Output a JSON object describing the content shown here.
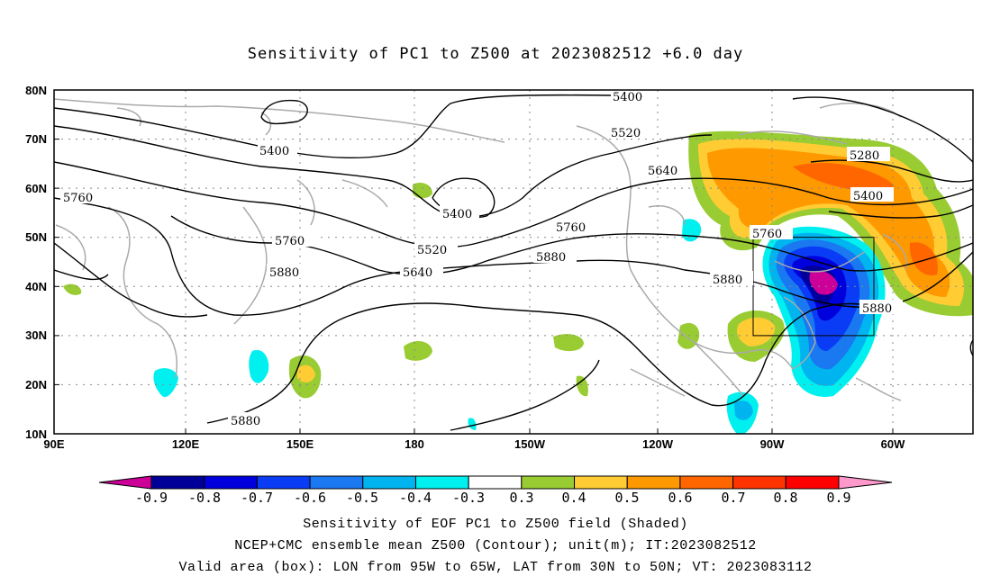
{
  "title": "Sensitivity of PC1 to Z500 at 2023082512 +6.0 day",
  "lat_labels": [
    "80N",
    "70N",
    "60N",
    "50N",
    "40N",
    "30N",
    "20N",
    "10N"
  ],
  "lon_labels": [
    "90E",
    "120E",
    "150E",
    "180",
    "150W",
    "120W",
    "90W",
    "60W"
  ],
  "contour_labels": [
    {
      "text": "5400",
      "id": "c5400a"
    },
    {
      "text": "5400",
      "id": "c5400b"
    },
    {
      "text": "5400",
      "id": "c5400c"
    },
    {
      "text": "5400",
      "id": "c5400d"
    },
    {
      "text": "5520",
      "id": "c5520a"
    },
    {
      "text": "5520",
      "id": "c5520b"
    },
    {
      "text": "5640",
      "id": "c5640a"
    },
    {
      "text": "5640",
      "id": "c5640b"
    },
    {
      "text": "5760",
      "id": "c5760a"
    },
    {
      "text": "5760",
      "id": "c5760b"
    },
    {
      "text": "5760",
      "id": "c5760c"
    },
    {
      "text": "5760",
      "id": "c5760d"
    },
    {
      "text": "5880",
      "id": "c5880a"
    },
    {
      "text": "5880",
      "id": "c5880b"
    },
    {
      "text": "5880",
      "id": "c5880c"
    },
    {
      "text": "5880",
      "id": "c5880d"
    },
    {
      "text": "5880",
      "id": "c5880e"
    },
    {
      "text": "5280",
      "id": "c5280a"
    }
  ],
  "colorbar": {
    "labels": [
      "-0.9",
      "-0.8",
      "-0.7",
      "-0.6",
      "-0.5",
      "-0.4",
      "-0.3",
      "0.3",
      "0.4",
      "0.5",
      "0.6",
      "0.7",
      "0.8",
      "0.9"
    ],
    "colors": [
      "#000099",
      "#0000dd",
      "#0a3cf5",
      "#1a78f0",
      "#00b4f0",
      "#00f0f0",
      "#ffffff",
      "#99cc33",
      "#ffcc33",
      "#ff9900",
      "#ff6600",
      "#ff3300",
      "#ff0000"
    ],
    "low_color": "#cc0099",
    "high_color": "#ff99cc"
  },
  "captions": [
    "Sensitivity of EOF PC1 to Z500 field (Shaded)",
    "NCEP+CMC ensemble mean Z500 (Contour); unit(m); IT:2023082512",
    "Valid area (box): LON from 95W to 65W, LAT from 30N to 50N; VT: 2023083112"
  ]
}
